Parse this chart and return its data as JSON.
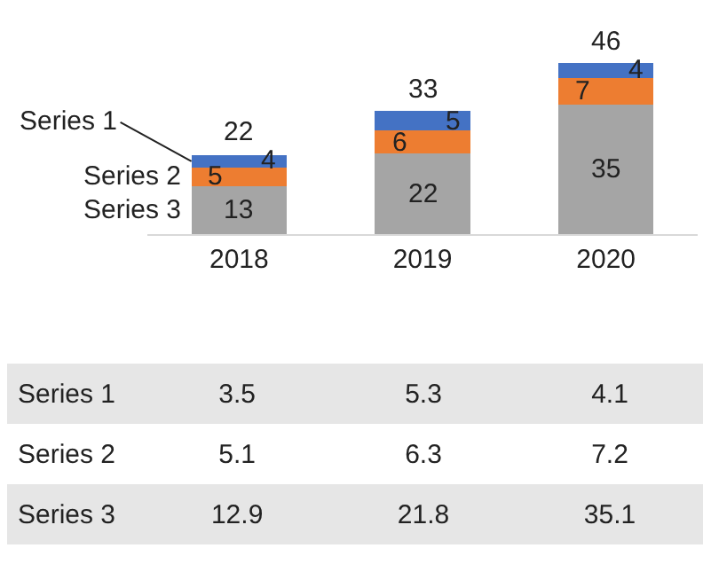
{
  "chart_data": {
    "type": "bar",
    "stacked": true,
    "categories": [
      "2018",
      "2019",
      "2020"
    ],
    "series": [
      {
        "name": "Series 3",
        "color": "#a5a5a5",
        "values": [
          12.9,
          21.8,
          35.1
        ]
      },
      {
        "name": "Series 2",
        "color": "#ed7d31",
        "values": [
          5.1,
          6.3,
          7.2
        ]
      },
      {
        "name": "Series 1",
        "color": "#4472c4",
        "values": [
          3.5,
          5.3,
          4.1
        ]
      }
    ],
    "annotations": [
      {
        "text": "13",
        "x": "2018",
        "y": 12.9
      },
      {
        "text": "22",
        "x": "2019",
        "y": 21.8
      },
      {
        "text": "35",
        "x": "2020",
        "y": 35.1
      },
      {
        "text": "5",
        "x": "2018",
        "y": 18
      },
      {
        "text": "6",
        "x": "2019",
        "y": 28.1
      },
      {
        "text": "7",
        "x": "2020",
        "y": 42.3
      },
      {
        "text": "4",
        "x": "2018",
        "y": 21.5
      },
      {
        "text": "5",
        "x": "2019",
        "y": 33.4
      },
      {
        "text": "4",
        "x": "2020",
        "y": 46.4
      }
    ],
    "totals": [
      "22",
      "33",
      "46"
    ],
    "data_labels": true,
    "legend": "left"
  }
}
